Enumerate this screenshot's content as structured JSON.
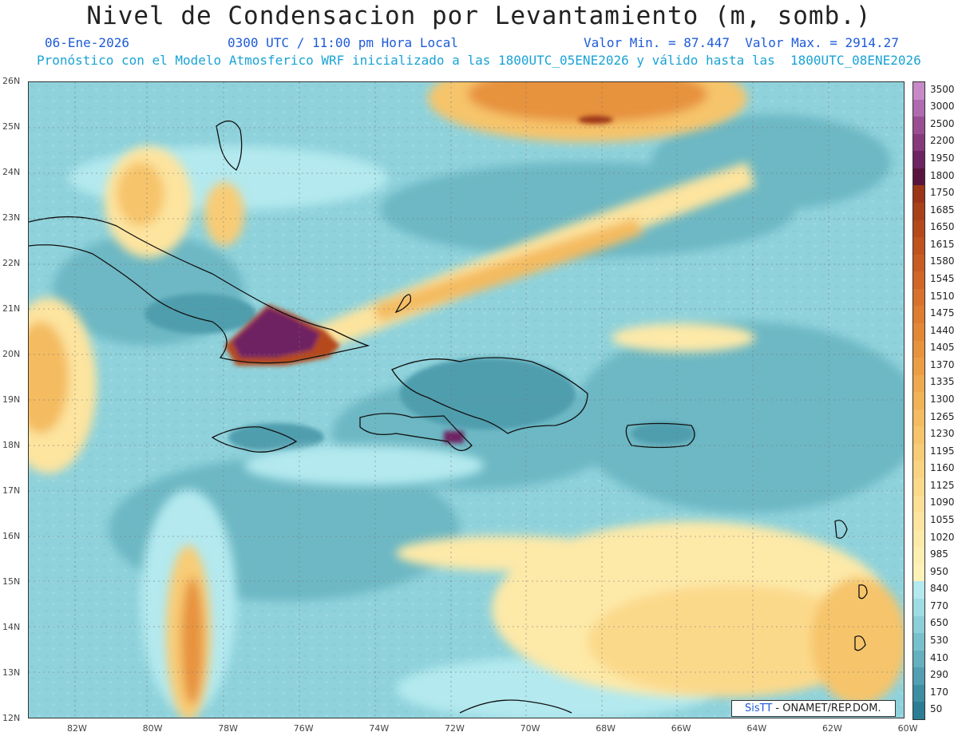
{
  "header": {
    "title": "Nivel de Condensacion por Levantamiento (m, somb.)",
    "date": "06-Ene-2026",
    "time": "0300 UTC / 11:00 pm Hora Local",
    "minmax": "Valor Min. = 87.447  Valor Max. = 2914.27",
    "model_line": "Pronóstico con el Modelo Atmosferico WRF inicializado a las 1800UTC_05ENE2026 y válido hasta las  1800UTC_08ENE2026"
  },
  "axes": {
    "lat_labels": [
      "26N",
      "25N",
      "24N",
      "23N",
      "22N",
      "21N",
      "20N",
      "19N",
      "18N",
      "17N",
      "16N",
      "15N",
      "14N",
      "13N",
      "12N"
    ],
    "lon_labels": [
      "82W",
      "80W",
      "78W",
      "76W",
      "74W",
      "72W",
      "70W",
      "68W",
      "66W",
      "64W",
      "62W",
      "60W"
    ]
  },
  "colorbar": {
    "labels": [
      "3500",
      "3000",
      "2500",
      "2200",
      "1950",
      "1800",
      "1750",
      "1685",
      "1650",
      "1615",
      "1580",
      "1545",
      "1510",
      "1475",
      "1440",
      "1405",
      "1370",
      "1335",
      "1300",
      "1265",
      "1230",
      "1195",
      "1160",
      "1125",
      "1090",
      "1055",
      "1020",
      "985",
      "950",
      "840",
      "770",
      "650",
      "530",
      "410",
      "290",
      "170",
      "50"
    ],
    "colors": [
      "#c78ac6",
      "#b06aae",
      "#9a4e92",
      "#863a7c",
      "#6e2462",
      "#58143e",
      "#9c3417",
      "#a8401a",
      "#b5491c",
      "#c0521e",
      "#c95c22",
      "#d26626",
      "#d8712b",
      "#de7c30",
      "#e38736",
      "#e7923c",
      "#eb9d44",
      "#ef a84e",
      "#f2b257",
      "#f4bb61",
      "#f6c46b",
      "#f8cc76",
      "#f9d381",
      "#fbd98b",
      "#fcdf95",
      "#fde49f",
      "#fde9a8",
      "#fdeeb1",
      "#fef2b9",
      "#b3e9ef",
      "#9fdde5",
      "#8ccfd9",
      "#78c0cc",
      "#65b0bf",
      "#519fb1",
      "#3e8ea2",
      "#2c7d93"
    ]
  },
  "credit": {
    "brand": "SisTT",
    "text": " - ONAMET/REP.DOM."
  }
}
